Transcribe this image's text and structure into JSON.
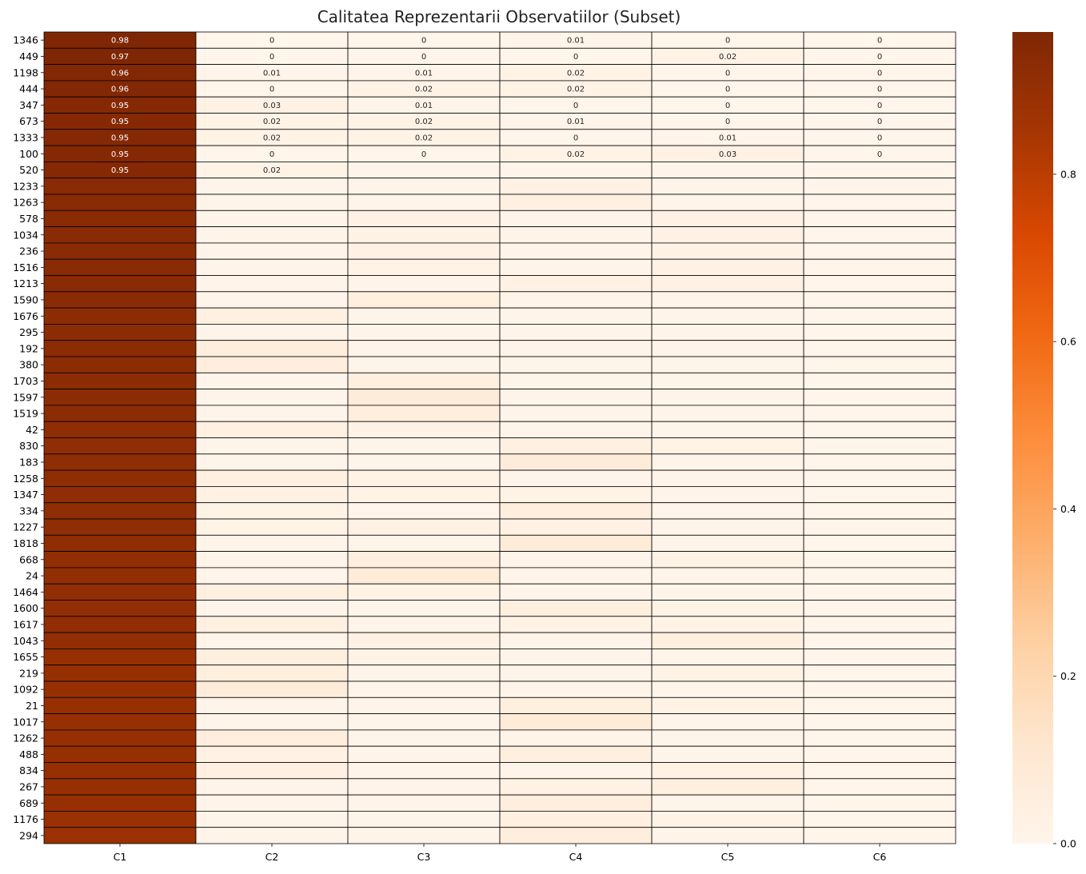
{
  "chart_data": {
    "type": "heatmap",
    "title": "Calitatea Reprezentarii Observatiilor (Subset)",
    "columns": [
      "C1",
      "C2",
      "C3",
      "C4",
      "C5",
      "C6"
    ],
    "rows": [
      "1346",
      "449",
      "1198",
      "444",
      "347",
      "673",
      "1333",
      "100",
      "520",
      "1233",
      "1263",
      "578",
      "1034",
      "236",
      "1516",
      "1213",
      "1590",
      "1676",
      "295",
      "192",
      "380",
      "1703",
      "1597",
      "1519",
      "42",
      "830",
      "183",
      "1258",
      "1347",
      "334",
      "1227",
      "1818",
      "668",
      "24",
      "1464",
      "1600",
      "1617",
      "1043",
      "1655",
      "219",
      "1092",
      "21",
      "1017",
      "1262",
      "488",
      "834",
      "267",
      "689",
      "1176",
      "294"
    ],
    "values": [
      [
        0.98,
        0,
        0,
        0.01,
        0,
        0
      ],
      [
        0.97,
        0,
        0,
        0,
        0.02,
        0
      ],
      [
        0.96,
        0.01,
        0.01,
        0.02,
        0,
        0
      ],
      [
        0.96,
        0,
        0.02,
        0.02,
        0,
        0
      ],
      [
        0.95,
        0.03,
        0.01,
        0,
        0,
        0
      ],
      [
        0.95,
        0.02,
        0.02,
        0.01,
        0,
        0
      ],
      [
        0.95,
        0.02,
        0.02,
        0,
        0.01,
        0
      ],
      [
        0.95,
        0,
        0,
        0.02,
        0.03,
        0
      ],
      [
        0.95,
        0.02,
        0.01,
        0.01,
        0.01,
        0
      ],
      [
        0.94,
        0.01,
        0.01,
        0.03,
        0.01,
        0
      ],
      [
        0.94,
        0.01,
        0.01,
        0.04,
        0.01,
        0
      ],
      [
        0.94,
        0.01,
        0.03,
        0.01,
        0.03,
        0
      ],
      [
        0.94,
        0.01,
        0.02,
        0.01,
        0.03,
        0
      ],
      [
        0.94,
        0.01,
        0.03,
        0.01,
        0.02,
        0
      ],
      [
        0.94,
        0.01,
        0.02,
        0.01,
        0.03,
        0
      ],
      [
        0.94,
        0.01,
        0.01,
        0.03,
        0.03,
        0
      ],
      [
        0.94,
        0.01,
        0.05,
        0.01,
        0.01,
        0
      ],
      [
        0.93,
        0.04,
        0.01,
        0.01,
        0.01,
        0
      ],
      [
        0.93,
        0.01,
        0.01,
        0.01,
        0.01,
        0
      ],
      [
        0.93,
        0.06,
        0.01,
        0.01,
        0.01,
        0
      ],
      [
        0.93,
        0.06,
        0.01,
        0.01,
        0.01,
        0
      ],
      [
        0.93,
        0.01,
        0.05,
        0.01,
        0.01,
        0
      ],
      [
        0.93,
        0.01,
        0.07,
        0.01,
        0.01,
        0
      ],
      [
        0.93,
        0.01,
        0.06,
        0.01,
        0.01,
        0
      ],
      [
        0.92,
        0.04,
        0.02,
        0.01,
        0.01,
        0
      ],
      [
        0.92,
        0.01,
        0.01,
        0.04,
        0.02,
        0
      ],
      [
        0.92,
        0.01,
        0.01,
        0.07,
        0.01,
        0
      ],
      [
        0.92,
        0.04,
        0.02,
        0.01,
        0.01,
        0
      ],
      [
        0.92,
        0.03,
        0.02,
        0.02,
        0.01,
        0
      ],
      [
        0.92,
        0.02,
        0.01,
        0.06,
        0.01,
        0
      ],
      [
        0.92,
        0.02,
        0.03,
        0.03,
        0.01,
        0
      ],
      [
        0.92,
        0.01,
        0.01,
        0.08,
        0.01,
        0
      ],
      [
        0.91,
        0.01,
        0.05,
        0.01,
        0.02,
        0
      ],
      [
        0.91,
        0.01,
        0.08,
        0.01,
        0.01,
        0
      ],
      [
        0.91,
        0.05,
        0.02,
        0.01,
        0.01,
        0
      ],
      [
        0.91,
        0.01,
        0.01,
        0.05,
        0.02,
        0
      ],
      [
        0.91,
        0.04,
        0.01,
        0.02,
        0.02,
        0
      ],
      [
        0.91,
        0.01,
        0.03,
        0.01,
        0.05,
        0
      ],
      [
        0.9,
        0.05,
        0.02,
        0.01,
        0.01,
        0
      ],
      [
        0.9,
        0.05,
        0.01,
        0.01,
        0.02,
        0
      ],
      [
        0.9,
        0.07,
        0.01,
        0.01,
        0.01,
        0
      ],
      [
        0.9,
        0.01,
        0.01,
        0.05,
        0.02,
        0
      ],
      [
        0.9,
        0.01,
        0.01,
        0.08,
        0.01,
        0
      ],
      [
        0.9,
        0.06,
        0.01,
        0.01,
        0.01,
        0
      ],
      [
        0.9,
        0.03,
        0.01,
        0.05,
        0.01,
        0
      ],
      [
        0.9,
        0.04,
        0.01,
        0.01,
        0.03,
        0
      ],
      [
        0.9,
        0.01,
        0.01,
        0.03,
        0.05,
        0
      ],
      [
        0.9,
        0.01,
        0.01,
        0.06,
        0.01,
        0
      ],
      [
        0.89,
        0.01,
        0.01,
        0.04,
        0.02,
        0
      ],
      [
        0.89,
        0.01,
        0.01,
        0.06,
        0.01,
        0
      ]
    ],
    "annotated_rows": 9,
    "annotated_cells_per_row": [
      6,
      6,
      6,
      6,
      6,
      6,
      6,
      6,
      2
    ],
    "colorbar": {
      "range": [
        0,
        0.97
      ],
      "ticks": [
        "0.0",
        "0.2",
        "0.4",
        "0.6",
        "0.8"
      ],
      "tick_values": [
        0,
        0.2,
        0.4,
        0.6,
        0.8
      ],
      "colormap": "Oranges",
      "stops": [
        "#fff5eb",
        "#fee6ce",
        "#fdd0a2",
        "#fdae6b",
        "#fd8d3c",
        "#f16913",
        "#d94801",
        "#a63603",
        "#7f2704"
      ]
    },
    "cell_border_color": "#000000",
    "grid": false
  }
}
